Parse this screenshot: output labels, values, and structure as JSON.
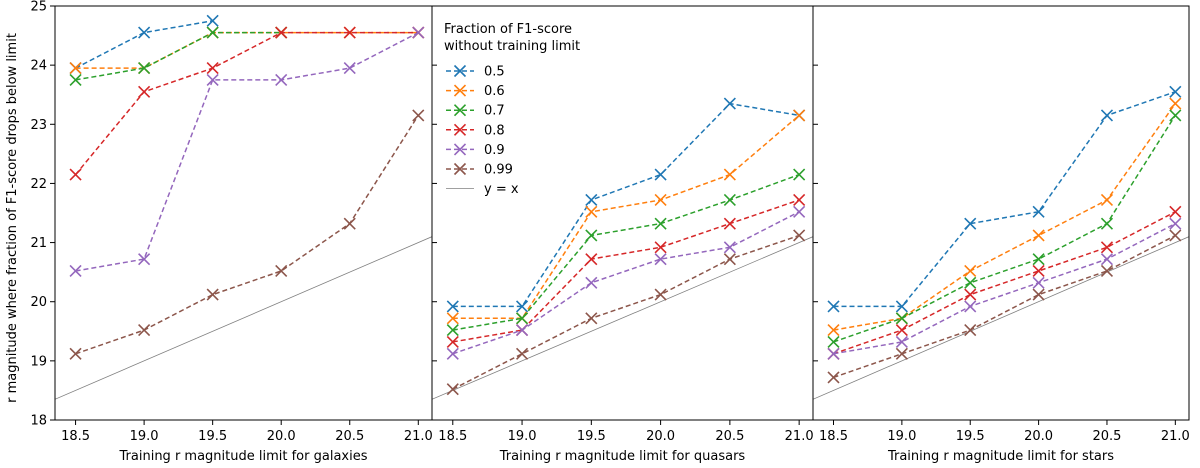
{
  "figure": {
    "ylabel": "r magnitude where fraction of F1-score drops below limit",
    "legend": {
      "title_line1": "Fraction of F1-score",
      "title_line2": "without training limit",
      "entries": [
        {
          "label": "0.5",
          "color": "#1f77b4"
        },
        {
          "label": "0.6",
          "color": "#ff7f0e"
        },
        {
          "label": "0.7",
          "color": "#2ca02c"
        },
        {
          "label": "0.8",
          "color": "#d62728"
        },
        {
          "label": "0.9",
          "color": "#9467bd"
        },
        {
          "label": "0.99",
          "color": "#8c564b"
        },
        {
          "label": "y = x",
          "color": "#808080"
        }
      ]
    }
  },
  "chart_data": [
    {
      "type": "line",
      "panel": "galaxies",
      "xlabel": "Training r magnitude limit for galaxies",
      "ylabel": "r magnitude where fraction of F1-score drops below limit",
      "xlim": [
        18.35,
        21.1
      ],
      "ylim": [
        18.0,
        25.0
      ],
      "x": [
        18.5,
        19.0,
        19.5,
        20.0,
        20.5,
        21.0
      ],
      "xticks": [
        "18.5",
        "19.0",
        "19.5",
        "20.0",
        "20.5",
        "21.0"
      ],
      "yticks": [
        "18",
        "19",
        "20",
        "21",
        "22",
        "23",
        "24",
        "25"
      ],
      "reference_line": "y = x",
      "series": [
        {
          "name": "0.5",
          "color": "#1f77b4",
          "values": [
            23.95,
            24.55,
            24.75,
            null,
            null,
            null
          ]
        },
        {
          "name": "0.6",
          "color": "#ff7f0e",
          "values": [
            23.95,
            23.95,
            24.55,
            24.55,
            24.55,
            24.55
          ]
        },
        {
          "name": "0.7",
          "color": "#2ca02c",
          "values": [
            23.75,
            23.95,
            24.55,
            24.55,
            null,
            null
          ]
        },
        {
          "name": "0.8",
          "color": "#d62728",
          "values": [
            22.15,
            23.55,
            23.95,
            24.55,
            24.55,
            24.55
          ]
        },
        {
          "name": "0.9",
          "color": "#9467bd",
          "values": [
            20.52,
            20.72,
            23.75,
            23.75,
            23.95,
            24.55
          ]
        },
        {
          "name": "0.99",
          "color": "#8c564b",
          "values": [
            19.12,
            19.52,
            20.12,
            20.52,
            21.32,
            23.15
          ]
        }
      ]
    },
    {
      "type": "line",
      "panel": "quasars",
      "xlabel": "Training r magnitude limit for quasars",
      "xlim": [
        18.35,
        21.1
      ],
      "ylim": [
        18.0,
        25.0
      ],
      "x": [
        18.5,
        19.0,
        19.5,
        20.0,
        20.5,
        21.0
      ],
      "xticks": [
        "18.5",
        "19.0",
        "19.5",
        "20.0",
        "20.5",
        "21.0"
      ],
      "reference_line": "y = x",
      "series": [
        {
          "name": "0.5",
          "color": "#1f77b4",
          "values": [
            19.92,
            19.92,
            21.72,
            22.15,
            23.35,
            23.15
          ]
        },
        {
          "name": "0.6",
          "color": "#ff7f0e",
          "values": [
            19.72,
            19.72,
            21.52,
            21.72,
            22.15,
            23.15
          ]
        },
        {
          "name": "0.7",
          "color": "#2ca02c",
          "values": [
            19.52,
            19.72,
            21.12,
            21.32,
            21.72,
            22.15
          ]
        },
        {
          "name": "0.8",
          "color": "#d62728",
          "values": [
            19.32,
            19.52,
            20.72,
            20.92,
            21.32,
            21.72
          ]
        },
        {
          "name": "0.9",
          "color": "#9467bd",
          "values": [
            19.12,
            19.52,
            20.32,
            20.72,
            20.92,
            21.52
          ]
        },
        {
          "name": "0.99",
          "color": "#8c564b",
          "values": [
            18.52,
            19.12,
            19.72,
            20.12,
            20.72,
            21.12
          ]
        }
      ]
    },
    {
      "type": "line",
      "panel": "stars",
      "xlabel": "Training r magnitude limit for stars",
      "xlim": [
        18.35,
        21.1
      ],
      "ylim": [
        18.0,
        25.0
      ],
      "x": [
        18.5,
        19.0,
        19.5,
        20.0,
        20.5,
        21.0
      ],
      "xticks": [
        "18.5",
        "19.0",
        "19.5",
        "20.0",
        "20.5",
        "21.0"
      ],
      "reference_line": "y = x",
      "series": [
        {
          "name": "0.5",
          "color": "#1f77b4",
          "values": [
            19.92,
            19.92,
            21.32,
            21.52,
            23.15,
            23.55
          ]
        },
        {
          "name": "0.6",
          "color": "#ff7f0e",
          "values": [
            19.52,
            19.72,
            20.52,
            21.12,
            21.72,
            23.35
          ]
        },
        {
          "name": "0.7",
          "color": "#2ca02c",
          "values": [
            19.32,
            19.72,
            20.32,
            20.72,
            21.32,
            23.15
          ]
        },
        {
          "name": "0.8",
          "color": "#d62728",
          "values": [
            19.12,
            19.52,
            20.12,
            20.52,
            20.92,
            21.52
          ]
        },
        {
          "name": "0.9",
          "color": "#9467bd",
          "values": [
            19.12,
            19.32,
            19.92,
            20.32,
            20.72,
            21.32
          ]
        },
        {
          "name": "0.99",
          "color": "#8c564b",
          "values": [
            18.72,
            19.12,
            19.52,
            20.12,
            20.52,
            21.12
          ]
        }
      ]
    }
  ]
}
